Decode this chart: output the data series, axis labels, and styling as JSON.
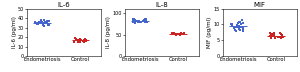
{
  "panels": [
    {
      "title": "IL-6",
      "ylabel": "IL-6 (pg/ml)",
      "ylim": [
        0,
        50
      ],
      "yticks": [
        0,
        10,
        20,
        30,
        40,
        50
      ],
      "endo_y": [
        33,
        34,
        35,
        36,
        37,
        32,
        35,
        38,
        36,
        34,
        35,
        33,
        36,
        37,
        35,
        34,
        36,
        38,
        35,
        33,
        34,
        37,
        36,
        35,
        34
      ],
      "ctrl_y": [
        15,
        16,
        17,
        18,
        19,
        15,
        17,
        16,
        18,
        17,
        15,
        16,
        18,
        17,
        16,
        15,
        17,
        16,
        18,
        17,
        15,
        16
      ]
    },
    {
      "title": "IL-8",
      "ylabel": "IL-8 (pg/ml)",
      "ylim": [
        0,
        110
      ],
      "yticks": [
        0,
        50,
        100
      ],
      "endo_y": [
        78,
        80,
        82,
        84,
        86,
        78,
        80,
        82,
        84,
        85,
        80,
        82,
        78,
        84,
        82,
        80,
        85,
        80,
        82,
        84,
        78,
        80,
        82,
        84,
        85
      ],
      "ctrl_y": [
        50,
        52,
        53,
        51,
        52,
        50,
        53,
        52,
        51,
        53,
        50,
        52,
        53,
        51,
        52,
        50,
        53,
        52,
        51,
        50,
        52,
        53
      ]
    },
    {
      "title": "MIF",
      "ylabel": "MIF (pg/ml)",
      "ylim": [
        0,
        15
      ],
      "yticks": [
        0,
        5,
        10,
        15
      ],
      "endo_y": [
        8,
        9,
        10,
        11,
        9,
        8,
        10,
        9,
        11,
        10,
        8,
        9,
        10,
        11,
        9,
        8,
        10,
        9,
        8,
        10,
        9,
        11,
        10,
        9,
        8
      ],
      "ctrl_y": [
        6,
        6.5,
        7,
        6,
        6.5,
        7,
        6,
        6.5,
        7,
        6,
        6.5,
        6,
        7,
        6.5,
        6,
        7,
        6.5,
        6,
        6.5,
        7,
        6,
        6.5
      ]
    }
  ],
  "blue": "#4466CC",
  "red": "#CC2222",
  "endo_label": "Endometriosis",
  "ctrl_label": "Control",
  "marker": "s",
  "marker_size": 1.8,
  "title_font_size": 5.0,
  "ylabel_font_size": 4.0,
  "tick_font_size": 3.5,
  "xlabel_font_size": 3.8,
  "jitter_endo": 0.18,
  "jitter_ctrl": 0.18,
  "mean_lw": 0.7
}
